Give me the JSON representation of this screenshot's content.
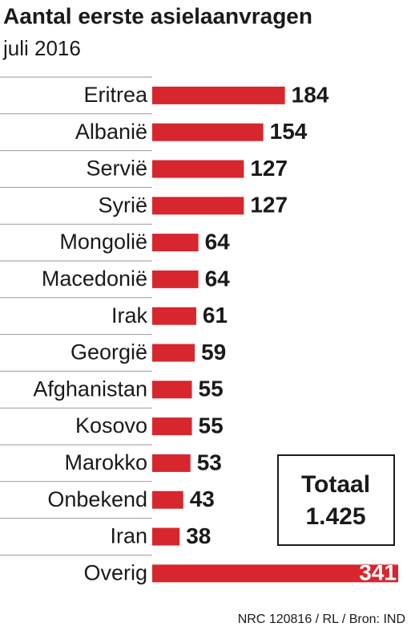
{
  "chart_data": {
    "type": "bar",
    "orientation": "horizontal",
    "title": "Aantal eerste asielaanvragen",
    "subtitle": "juli 2016",
    "categories": [
      "Eritrea",
      "Albanië",
      "Servië",
      "Syrië",
      "Mongolië",
      "Macedonië",
      "Irak",
      "Georgië",
      "Afghanistan",
      "Kosovo",
      "Marokko",
      "Onbekend",
      "Iran",
      "Overig"
    ],
    "values": [
      184,
      154,
      127,
      127,
      64,
      64,
      61,
      59,
      55,
      55,
      53,
      43,
      38,
      341
    ],
    "color": "#d7262e",
    "annotations": [
      "Totaal",
      "1.425"
    ],
    "source": "NRC 120816 / RL / Bron: IND"
  }
}
